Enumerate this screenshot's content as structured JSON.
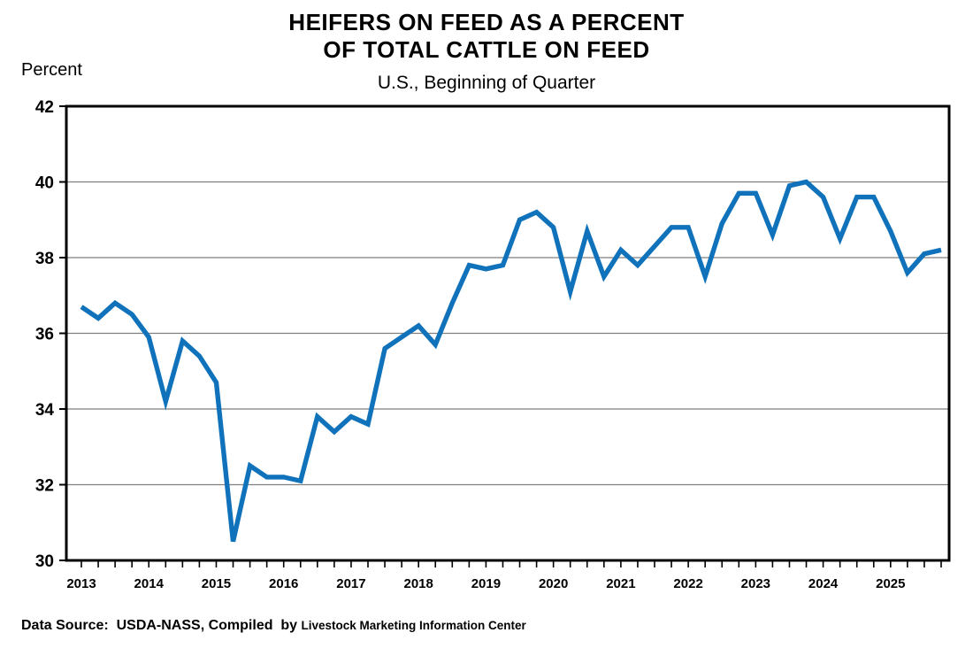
{
  "header": {
    "title_line1": "HEIFERS ON FEED AS A PERCENT",
    "title_line2": "OF TOTAL CATTLE ON FEED",
    "subtitle": "U.S., Beginning of Quarter"
  },
  "footer": {
    "source_prefix": "Data Source:  USDA-NASS, Compiled  by ",
    "source_org": "Livestock Marketing Information Center"
  },
  "chart_data": {
    "type": "line",
    "title": "HEIFERS ON FEED AS A PERCENT OF TOTAL CATTLE ON FEED",
    "subtitle": "U.S., Beginning of Quarter",
    "ylabel": "Percent",
    "xlabel": "",
    "ylim": [
      30,
      42
    ],
    "ytick_step": 2,
    "grid": "horizontal",
    "legend": "none",
    "frequency": "quarterly",
    "start_quarter": "2013 Q1",
    "end_quarter": "2025 Q4",
    "years": [
      2013,
      2014,
      2015,
      2016,
      2017,
      2018,
      2019,
      2020,
      2021,
      2022,
      2023,
      2024,
      2025
    ],
    "line_color": "#1072BA",
    "series": [
      {
        "name": "Heifers on feed as percent of total cattle on feed",
        "values": [
          36.7,
          36.4,
          36.8,
          36.5,
          35.9,
          34.2,
          35.8,
          35.4,
          34.7,
          30.5,
          32.5,
          32.2,
          32.2,
          32.1,
          33.8,
          33.4,
          33.8,
          33.6,
          35.6,
          35.9,
          36.2,
          35.7,
          36.8,
          37.8,
          37.7,
          37.8,
          39.0,
          39.2,
          38.8,
          37.1,
          38.7,
          37.5,
          38.2,
          37.8,
          38.3,
          38.8,
          38.8,
          37.5,
          38.9,
          39.7,
          39.7,
          38.6,
          39.9,
          40.0,
          39.6,
          38.5,
          39.6,
          39.6,
          38.7,
          37.6,
          38.1,
          38.2
        ]
      }
    ]
  }
}
